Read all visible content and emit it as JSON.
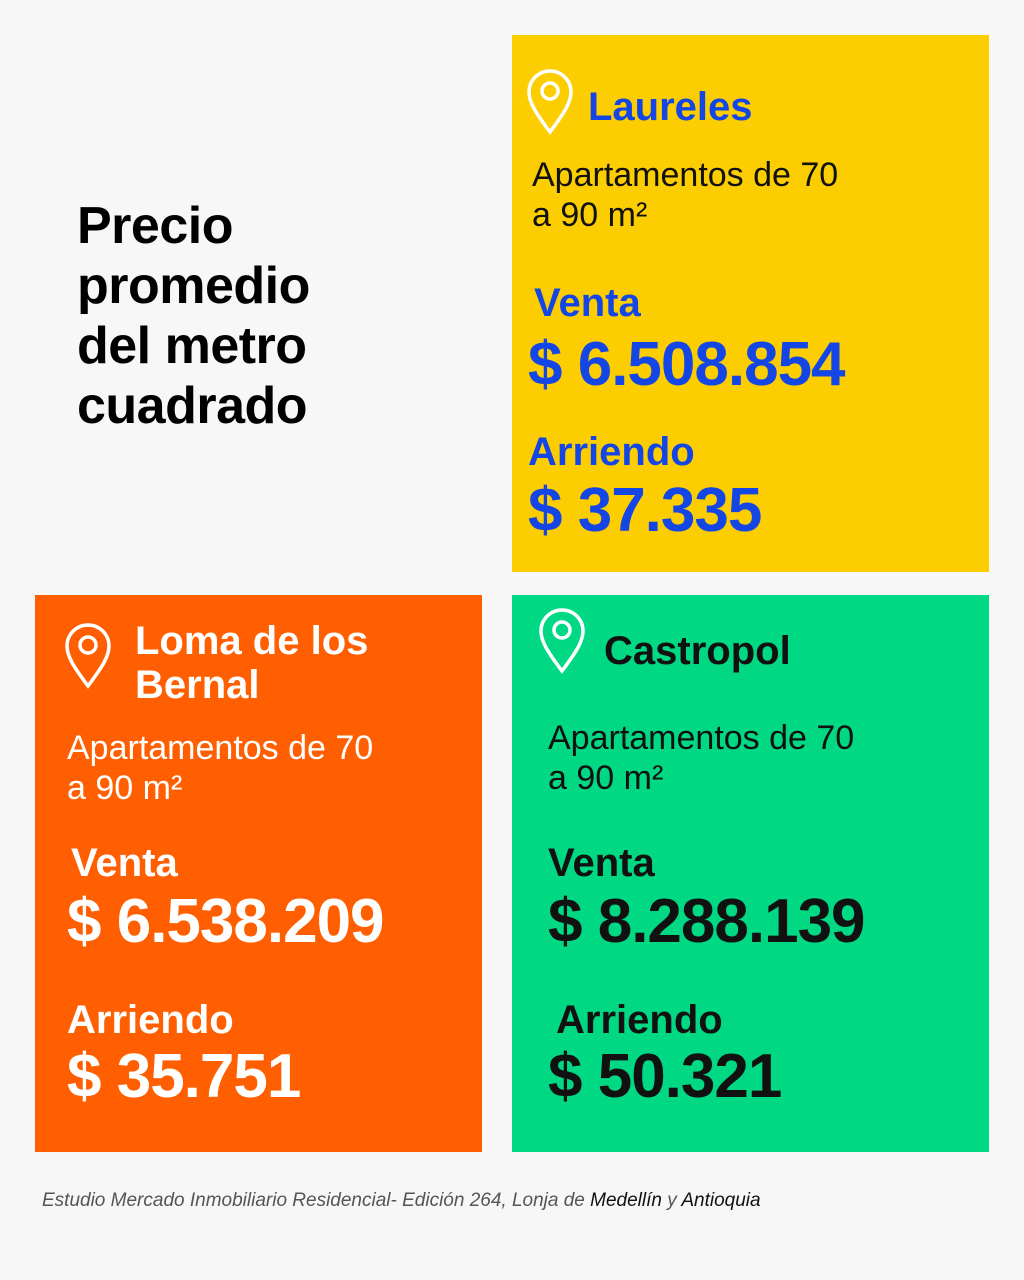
{
  "title": "Precio promedio del metro cuadrado",
  "cards": [
    {
      "name": "Laureles",
      "subtitle": "Apartamentos de 70 a 90 m²",
      "sale_label": "Venta",
      "sale_value": "$ 6.508.854",
      "rent_label": "Arriendo",
      "rent_value": "$ 37.335"
    },
    {
      "name": "Loma de los Bernal",
      "subtitle": "Apartamentos de 70 a 90 m²",
      "sale_label": "Venta",
      "sale_value": "$ 6.538.209",
      "rent_label": "Arriendo",
      "rent_value": "$ 35.751"
    },
    {
      "name": "Castropol",
      "subtitle": "Apartamentos de 70 a 90 m²",
      "sale_label": "Venta",
      "sale_value": "$ 8.288.139",
      "rent_label": "Arriendo",
      "rent_value": "$ 50.321"
    }
  ],
  "footer": {
    "source": "Estudio Mercado Inmobiliario Residencial- Edición 264, Lonja de",
    "city": "Medellín",
    "joiner": "y",
    "region": "Antioquia"
  }
}
